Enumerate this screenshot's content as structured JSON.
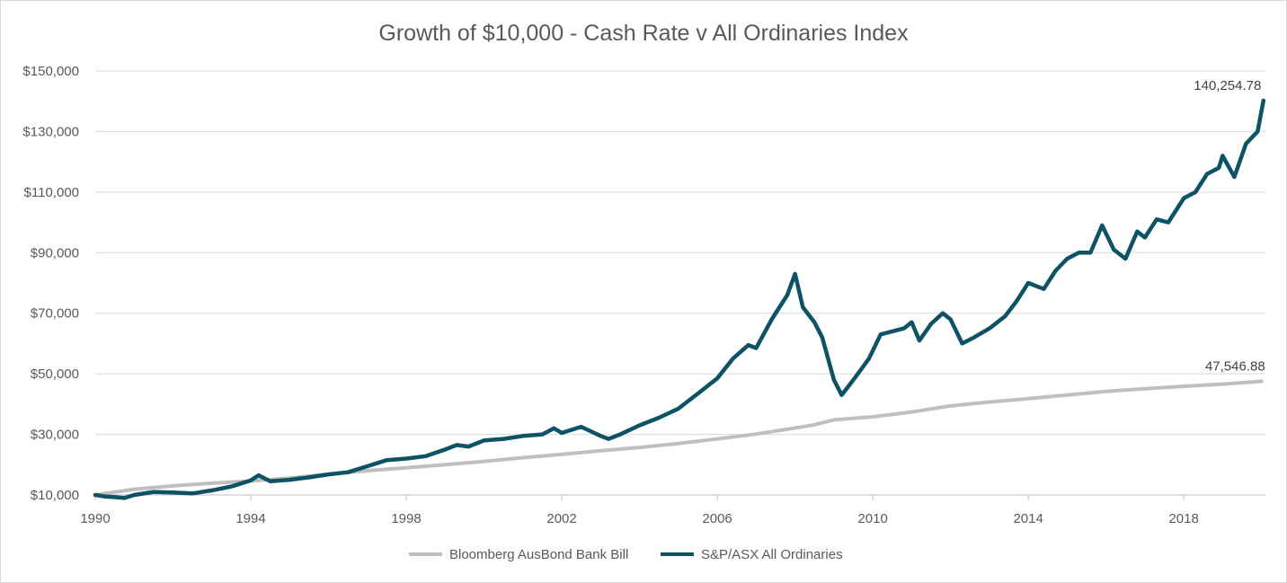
{
  "chart_data": {
    "type": "line",
    "title": "Growth of $10,000 - Cash Rate v All Ordinaries Index",
    "xlabel": "",
    "ylabel": "",
    "xlim": [
      1990,
      2020.1
    ],
    "ylim": [
      10000,
      150000
    ],
    "x_ticks": [
      1990,
      1994,
      1998,
      2002,
      2006,
      2010,
      2014,
      2018
    ],
    "x_tick_labels": [
      "1990",
      "1994",
      "1998",
      "2002",
      "2006",
      "2010",
      "2014",
      "2018"
    ],
    "y_ticks": [
      10000,
      30000,
      50000,
      70000,
      90000,
      110000,
      130000,
      150000
    ],
    "y_tick_labels": [
      "$10,000",
      "$30,000",
      "$50,000",
      "$70,000",
      "$90,000",
      "$110,000",
      "$130,000",
      "$150,000"
    ],
    "grid": true,
    "legend_position": "bottom",
    "colors": {
      "bank_bill": "#bfbfbf",
      "all_ords": "#0e5266",
      "grid": "#d9d9d9"
    },
    "series": [
      {
        "name": "Bloomberg AusBond Bank Bill",
        "x": [
          1990,
          1991,
          1992,
          1993,
          1994,
          1995,
          1996,
          1997,
          1998,
          1999,
          2000,
          2001,
          2002,
          2003,
          2004,
          2005,
          2006,
          2007,
          2008,
          2008.5,
          2009,
          2010,
          2011,
          2012,
          2013,
          2014,
          2015,
          2016,
          2017,
          2018,
          2019,
          2020
        ],
        "y": [
          10000,
          11900,
          13000,
          13900,
          14600,
          15600,
          16900,
          18000,
          19000,
          20000,
          21100,
          22300,
          23400,
          24600,
          25700,
          27000,
          28500,
          30100,
          32100,
          33200,
          34800,
          35800,
          37400,
          39400,
          40700,
          41800,
          43000,
          44200,
          45100,
          45900,
          46600,
          47546.88
        ]
      },
      {
        "name": "S&P/ASX All Ordinaries",
        "x": [
          1990,
          1990.25,
          1990.5,
          1990.75,
          1991,
          1991.5,
          1992,
          1992.5,
          1993,
          1993.5,
          1994,
          1994.2,
          1994.5,
          1995,
          1995.5,
          1996,
          1996.5,
          1997,
          1997.5,
          1998,
          1998.5,
          1999,
          1999.3,
          1999.6,
          2000,
          2000.5,
          2001,
          2001.5,
          2001.8,
          2002,
          2002.5,
          2003,
          2003.2,
          2003.5,
          2004,
          2004.5,
          2005,
          2005.5,
          2006,
          2006.4,
          2006.8,
          2007,
          2007.4,
          2007.6,
          2007.8,
          2008,
          2008.2,
          2008.5,
          2008.7,
          2009,
          2009.2,
          2009.5,
          2009.9,
          2010.2,
          2010.5,
          2010.8,
          2011,
          2011.2,
          2011.5,
          2011.8,
          2012,
          2012.3,
          2012.6,
          2013,
          2013.4,
          2013.7,
          2014,
          2014.4,
          2014.7,
          2015,
          2015.3,
          2015.6,
          2015.9,
          2016.2,
          2016.5,
          2016.8,
          2017,
          2017.3,
          2017.6,
          2018,
          2018.3,
          2018.6,
          2018.9,
          2019,
          2019.3,
          2019.6,
          2019.9,
          2020.05
        ],
        "y": [
          10000,
          9500,
          9300,
          9000,
          10000,
          11000,
          10800,
          10500,
          11500,
          12800,
          14800,
          16500,
          14500,
          15000,
          15800,
          16800,
          17500,
          19500,
          21500,
          22000,
          22800,
          25000,
          26500,
          26000,
          28000,
          28500,
          29500,
          30000,
          32000,
          30500,
          32500,
          29500,
          28500,
          30000,
          33000,
          35500,
          38500,
          43500,
          48500,
          55000,
          59500,
          58500,
          68000,
          72000,
          76000,
          83000,
          72000,
          67000,
          62000,
          48000,
          43000,
          48000,
          55000,
          63000,
          64000,
          65000,
          67000,
          61000,
          66500,
          70000,
          68000,
          60000,
          62000,
          65000,
          69000,
          74000,
          80000,
          78000,
          84000,
          88000,
          90000,
          90000,
          99000,
          91000,
          88000,
          97000,
          95000,
          101000,
          100000,
          108000,
          110000,
          116000,
          118000,
          122000,
          115000,
          126000,
          130000,
          140254.78
        ]
      }
    ],
    "annotations": [
      {
        "series": "S&P/ASX All Ordinaries",
        "text": "140,254.78",
        "x": 2019.9,
        "y": 140254.78
      },
      {
        "series": "Bloomberg AusBond Bank Bill",
        "text": "47,546.88",
        "x": 2020,
        "y": 47546.88
      }
    ]
  }
}
